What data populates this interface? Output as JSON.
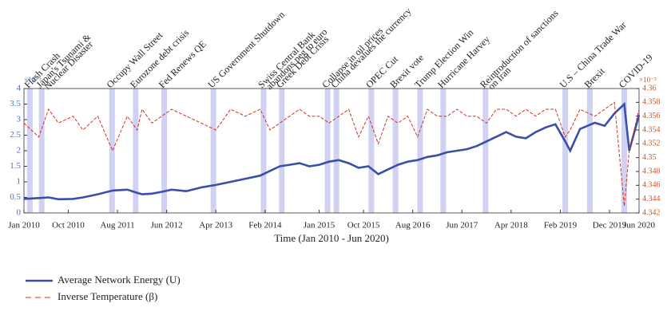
{
  "chart_data": {
    "type": "line",
    "x_label": "Time (Jan 2010 - Jun 2020)",
    "y_multiplier": "×10⁻³",
    "y2_multiplier": "×10⁻³",
    "xlim": [
      0,
      125
    ],
    "xticks": [
      {
        "value": 0,
        "label": "Jan 2010"
      },
      {
        "value": 9,
        "label": "Oct 2010"
      },
      {
        "value": 19,
        "label": "Aug 2011"
      },
      {
        "value": 29,
        "label": "Jun 2012"
      },
      {
        "value": 39,
        "label": "Apr 2013"
      },
      {
        "value": 49,
        "label": "Feb 2014"
      },
      {
        "value": 60,
        "label": "Jan 2015"
      },
      {
        "value": 69,
        "label": "Oct 2015"
      },
      {
        "value": 79,
        "label": "Aug 2016"
      },
      {
        "value": 89,
        "label": "Jun 2017"
      },
      {
        "value": 99,
        "label": "Apr 2018"
      },
      {
        "value": 109,
        "label": "Feb 2019"
      },
      {
        "value": 119,
        "label": "Dec 2019"
      },
      {
        "value": 125,
        "label": "Jun 2020"
      }
    ],
    "ylim": [
      0,
      4
    ],
    "yticks": [
      0,
      0.5,
      1,
      1.5,
      2,
      2.5,
      3,
      3.5,
      4
    ],
    "y2lim": [
      4.342,
      4.36
    ],
    "y2ticks": [
      4.342,
      4.344,
      4.346,
      4.348,
      4.35,
      4.352,
      4.354,
      4.356,
      4.358,
      4.36
    ],
    "y_color": "#4a6fd0",
    "y2_color": "#d9531e",
    "event_color": "#c9c9ee",
    "x": [
      0,
      3,
      5,
      7,
      10,
      12,
      15,
      18,
      21,
      23,
      24,
      26,
      28,
      30,
      33,
      36,
      39,
      42,
      45,
      48,
      50,
      52,
      54,
      56,
      58,
      60,
      62,
      64,
      66,
      68,
      70,
      72,
      74,
      76,
      78,
      80,
      82,
      84,
      86,
      88,
      90,
      92,
      94,
      96,
      98,
      100,
      102,
      104,
      106,
      108,
      110,
      111,
      113,
      116,
      118,
      120,
      122,
      123,
      125
    ],
    "series": [
      {
        "name": "Average Network Energy (U)",
        "color": "#3a4fa8",
        "style": "solid",
        "values": [
          0.45,
          0.48,
          0.5,
          0.44,
          0.45,
          0.5,
          0.6,
          0.72,
          0.75,
          0.65,
          0.6,
          0.62,
          0.68,
          0.75,
          0.7,
          0.82,
          0.9,
          1.0,
          1.1,
          1.2,
          1.35,
          1.5,
          1.55,
          1.6,
          1.5,
          1.55,
          1.65,
          1.7,
          1.6,
          1.45,
          1.5,
          1.25,
          1.4,
          1.55,
          1.65,
          1.7,
          1.8,
          1.85,
          1.95,
          2.0,
          2.05,
          2.15,
          2.3,
          2.45,
          2.6,
          2.45,
          2.4,
          2.6,
          2.75,
          2.85,
          2.3,
          2.0,
          2.7,
          2.9,
          2.8,
          3.2,
          3.5,
          2.0,
          3.15
        ]
      },
      {
        "name": "Inverse Temperature (β)",
        "color": "#d9301e",
        "style": "dashed",
        "axis": "y2",
        "values": [
          4.355,
          4.353,
          4.357,
          4.355,
          4.356,
          4.354,
          4.356,
          4.351,
          4.356,
          4.354,
          4.357,
          4.355,
          4.356,
          4.357,
          4.356,
          4.355,
          4.354,
          4.357,
          4.356,
          4.357,
          4.354,
          4.355,
          4.356,
          4.357,
          4.356,
          4.356,
          4.355,
          4.356,
          4.357,
          4.353,
          4.356,
          4.352,
          4.356,
          4.355,
          4.356,
          4.353,
          4.357,
          4.356,
          4.356,
          4.357,
          4.356,
          4.356,
          4.355,
          4.357,
          4.357,
          4.356,
          4.357,
          4.356,
          4.357,
          4.357,
          4.353,
          4.354,
          4.357,
          4.356,
          4.357,
          4.358,
          4.343,
          4.351,
          4.357
        ]
      }
    ],
    "events": [
      {
        "x": 1.2,
        "label": [
          "Flash Crash"
        ]
      },
      {
        "x": 3.6,
        "label": [
          "Japan's Tsunami &",
          "Nuclear Disaster"
        ]
      },
      {
        "x": 17.9,
        "label": [
          "Occupy Wall Street"
        ]
      },
      {
        "x": 22.7,
        "label": [
          "Eurozone debt crisis"
        ]
      },
      {
        "x": 28.5,
        "label": [
          "Fed Renews QE"
        ]
      },
      {
        "x": 38.5,
        "label": [
          "US Government Shutdown"
        ]
      },
      {
        "x": 48.7,
        "label": [
          "Swiss Central Bank",
          "abandons peg to euro"
        ]
      },
      {
        "x": 52.4,
        "label": [
          "Greek Debt Crisis"
        ]
      },
      {
        "x": 61.7,
        "label": [
          "Collapse in oil prices"
        ]
      },
      {
        "x": 63.5,
        "label": [
          "China devalues the currency"
        ]
      },
      {
        "x": 70.6,
        "label": [
          "OPEC Cut"
        ]
      },
      {
        "x": 75.5,
        "label": [
          "Brexit vote"
        ]
      },
      {
        "x": 80.5,
        "label": [
          "Trump Election Win"
        ]
      },
      {
        "x": 85.2,
        "label": [
          "Hurricane Harvey"
        ]
      },
      {
        "x": 93.8,
        "label": [
          "Reintroduction of sanctions",
          "on Iran"
        ]
      },
      {
        "x": 110,
        "label": [
          "U.S – China Trade War"
        ]
      },
      {
        "x": 115,
        "label": [
          "Brexit"
        ]
      },
      {
        "x": 122,
        "label": [
          "COVID-19"
        ]
      }
    ]
  }
}
